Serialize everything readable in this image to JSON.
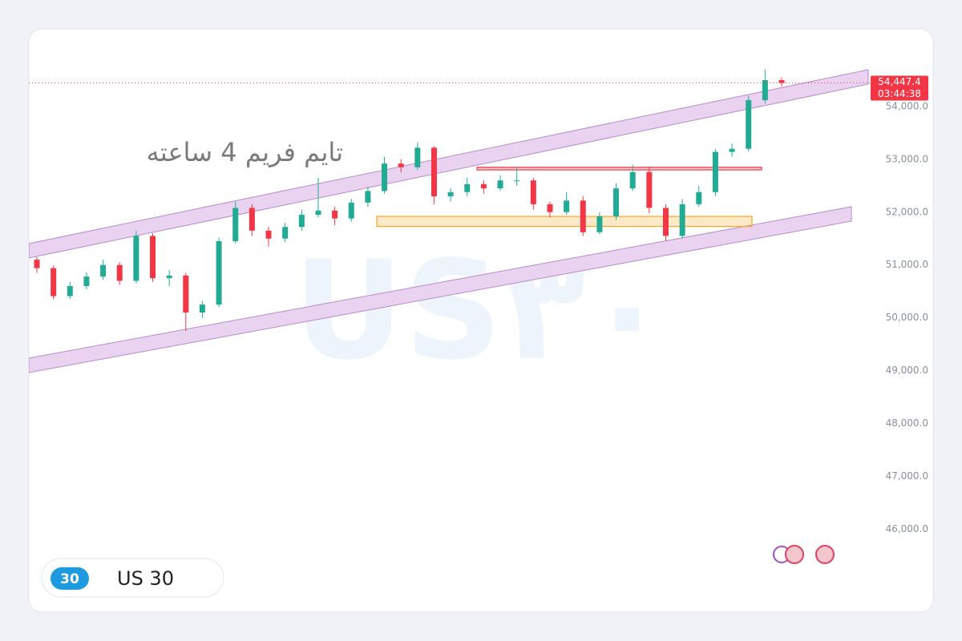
{
  "chart_data": {
    "type": "candlestick",
    "annotation": "تایم فریم 4 ساعته",
    "watermark": "US۳۰",
    "symbol_badge": "30",
    "symbol": "US 30",
    "up_color": "#22ab94",
    "down_color": "#f23645",
    "ylim": [
      45170,
      55410
    ],
    "yticks": [
      {
        "value": 46000,
        "label": "46,000.0"
      },
      {
        "value": 47000,
        "label": "47,000.0"
      },
      {
        "value": 48000,
        "label": "48,000.0"
      },
      {
        "value": 49000,
        "label": "49,000.0"
      },
      {
        "value": 50000,
        "label": "50,000.0"
      },
      {
        "value": 51000,
        "label": "51,000.0"
      },
      {
        "value": 52000,
        "label": "52,000.0"
      },
      {
        "value": 53000,
        "label": "53,000.0"
      },
      {
        "value": 54000,
        "label": "54,000.0"
      }
    ],
    "last_price": {
      "value": 54447.4,
      "label": "54,447.4"
    },
    "countdown": "03:44:38",
    "zones": [
      {
        "low": 52800,
        "high": 52850,
        "color": "#f23645"
      },
      {
        "low": 51730,
        "high": 51920,
        "color": "#f5a623"
      }
    ],
    "ohlc": [
      [
        51100,
        51150,
        50850,
        50940
      ],
      [
        50940,
        50990,
        50350,
        50410
      ],
      [
        50410,
        50680,
        50360,
        50600
      ],
      [
        50600,
        50860,
        50540,
        50780
      ],
      [
        50780,
        51100,
        50720,
        51000
      ],
      [
        51000,
        51050,
        50620,
        50700
      ],
      [
        50700,
        51650,
        50650,
        51550
      ],
      [
        51550,
        51600,
        50680,
        50750
      ],
      [
        50750,
        50900,
        50600,
        50800
      ],
      [
        50800,
        50850,
        49750,
        50100
      ],
      [
        50100,
        50320,
        50000,
        50250
      ],
      [
        50250,
        51520,
        50200,
        51450
      ],
      [
        51450,
        52200,
        51400,
        52080
      ],
      [
        52080,
        52150,
        51550,
        51650
      ],
      [
        51650,
        51720,
        51350,
        51500
      ],
      [
        51500,
        51800,
        51430,
        51720
      ],
      [
        51720,
        52050,
        51650,
        51950
      ],
      [
        51950,
        52650,
        51900,
        52030
      ],
      [
        52030,
        52100,
        51750,
        51880
      ],
      [
        51880,
        52250,
        51820,
        52180
      ],
      [
        52180,
        52480,
        52100,
        52400
      ],
      [
        52400,
        53050,
        52350,
        52920
      ],
      [
        52920,
        53000,
        52750,
        52850
      ],
      [
        52850,
        53320,
        52800,
        53220
      ],
      [
        53220,
        53250,
        52150,
        52300
      ],
      [
        52300,
        52450,
        52200,
        52380
      ],
      [
        52380,
        52650,
        52300,
        52530
      ],
      [
        52530,
        52600,
        52350,
        52450
      ],
      [
        52450,
        52700,
        52400,
        52600
      ],
      [
        52600,
        52850,
        52500,
        52600
      ],
      [
        52600,
        52650,
        52050,
        52150
      ],
      [
        52150,
        52200,
        51900,
        52000
      ],
      [
        52000,
        52380,
        51950,
        52220
      ],
      [
        52220,
        52300,
        51550,
        51620
      ],
      [
        51620,
        52000,
        51580,
        51920
      ],
      [
        51920,
        52550,
        51850,
        52450
      ],
      [
        52450,
        52900,
        52400,
        52760
      ],
      [
        52760,
        52850,
        51980,
        52080
      ],
      [
        52080,
        52150,
        51450,
        51550
      ],
      [
        51550,
        52250,
        51500,
        52150
      ],
      [
        52150,
        52500,
        52100,
        52380
      ],
      [
        52380,
        53200,
        52300,
        53140
      ],
      [
        53140,
        53300,
        53050,
        53200
      ],
      [
        53200,
        54200,
        53150,
        54120
      ],
      [
        54120,
        54700,
        54050,
        54500
      ],
      [
        54500,
        54550,
        54380,
        54447.4
      ]
    ]
  }
}
